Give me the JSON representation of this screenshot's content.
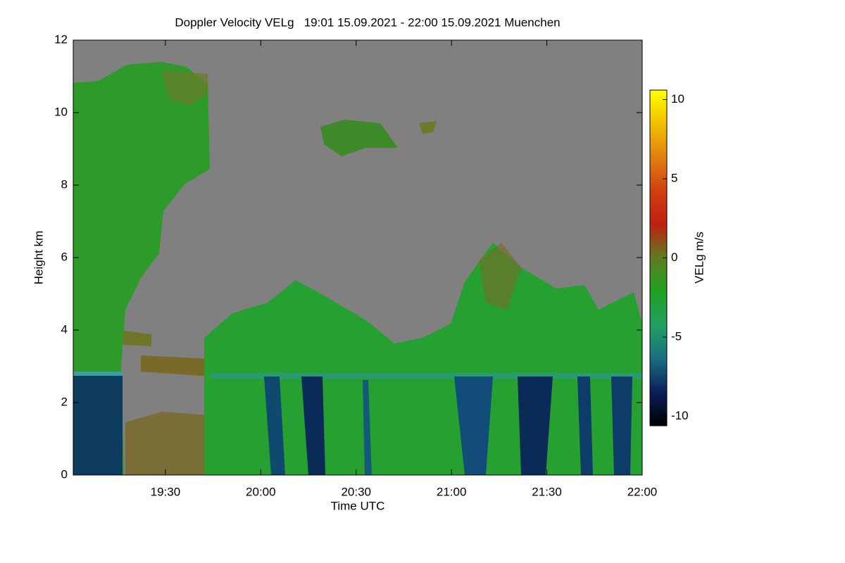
{
  "chart_data": {
    "type": "heatmap",
    "title": "Doppler Velocity VELg   19:01 15.09.2021 - 22:00 15.09.2021 Muenchen",
    "x_label": "Time UTC",
    "y_label": "Height km",
    "colorbar_label": "VELg m/s",
    "xlim": [
      "19:01",
      "22:00"
    ],
    "xticks": [
      "19:30",
      "20:00",
      "20:30",
      "21:00",
      "21:30",
      "22:00"
    ],
    "ylim": [
      0,
      12
    ],
    "yticks": [
      0,
      2,
      4,
      6,
      8,
      10,
      12
    ],
    "zlim": [
      -10.6,
      10.6
    ],
    "zticks": [
      -10,
      -5,
      0,
      5,
      10
    ],
    "colorscale": [
      "#000000",
      "#0a1e5a",
      "#1a6e80",
      "#20a060",
      "#20a020",
      "#5e7c20",
      "#c02010",
      "#d04010",
      "#e08010",
      "#f0c000",
      "#ffff00"
    ],
    "background": "#808080"
  }
}
